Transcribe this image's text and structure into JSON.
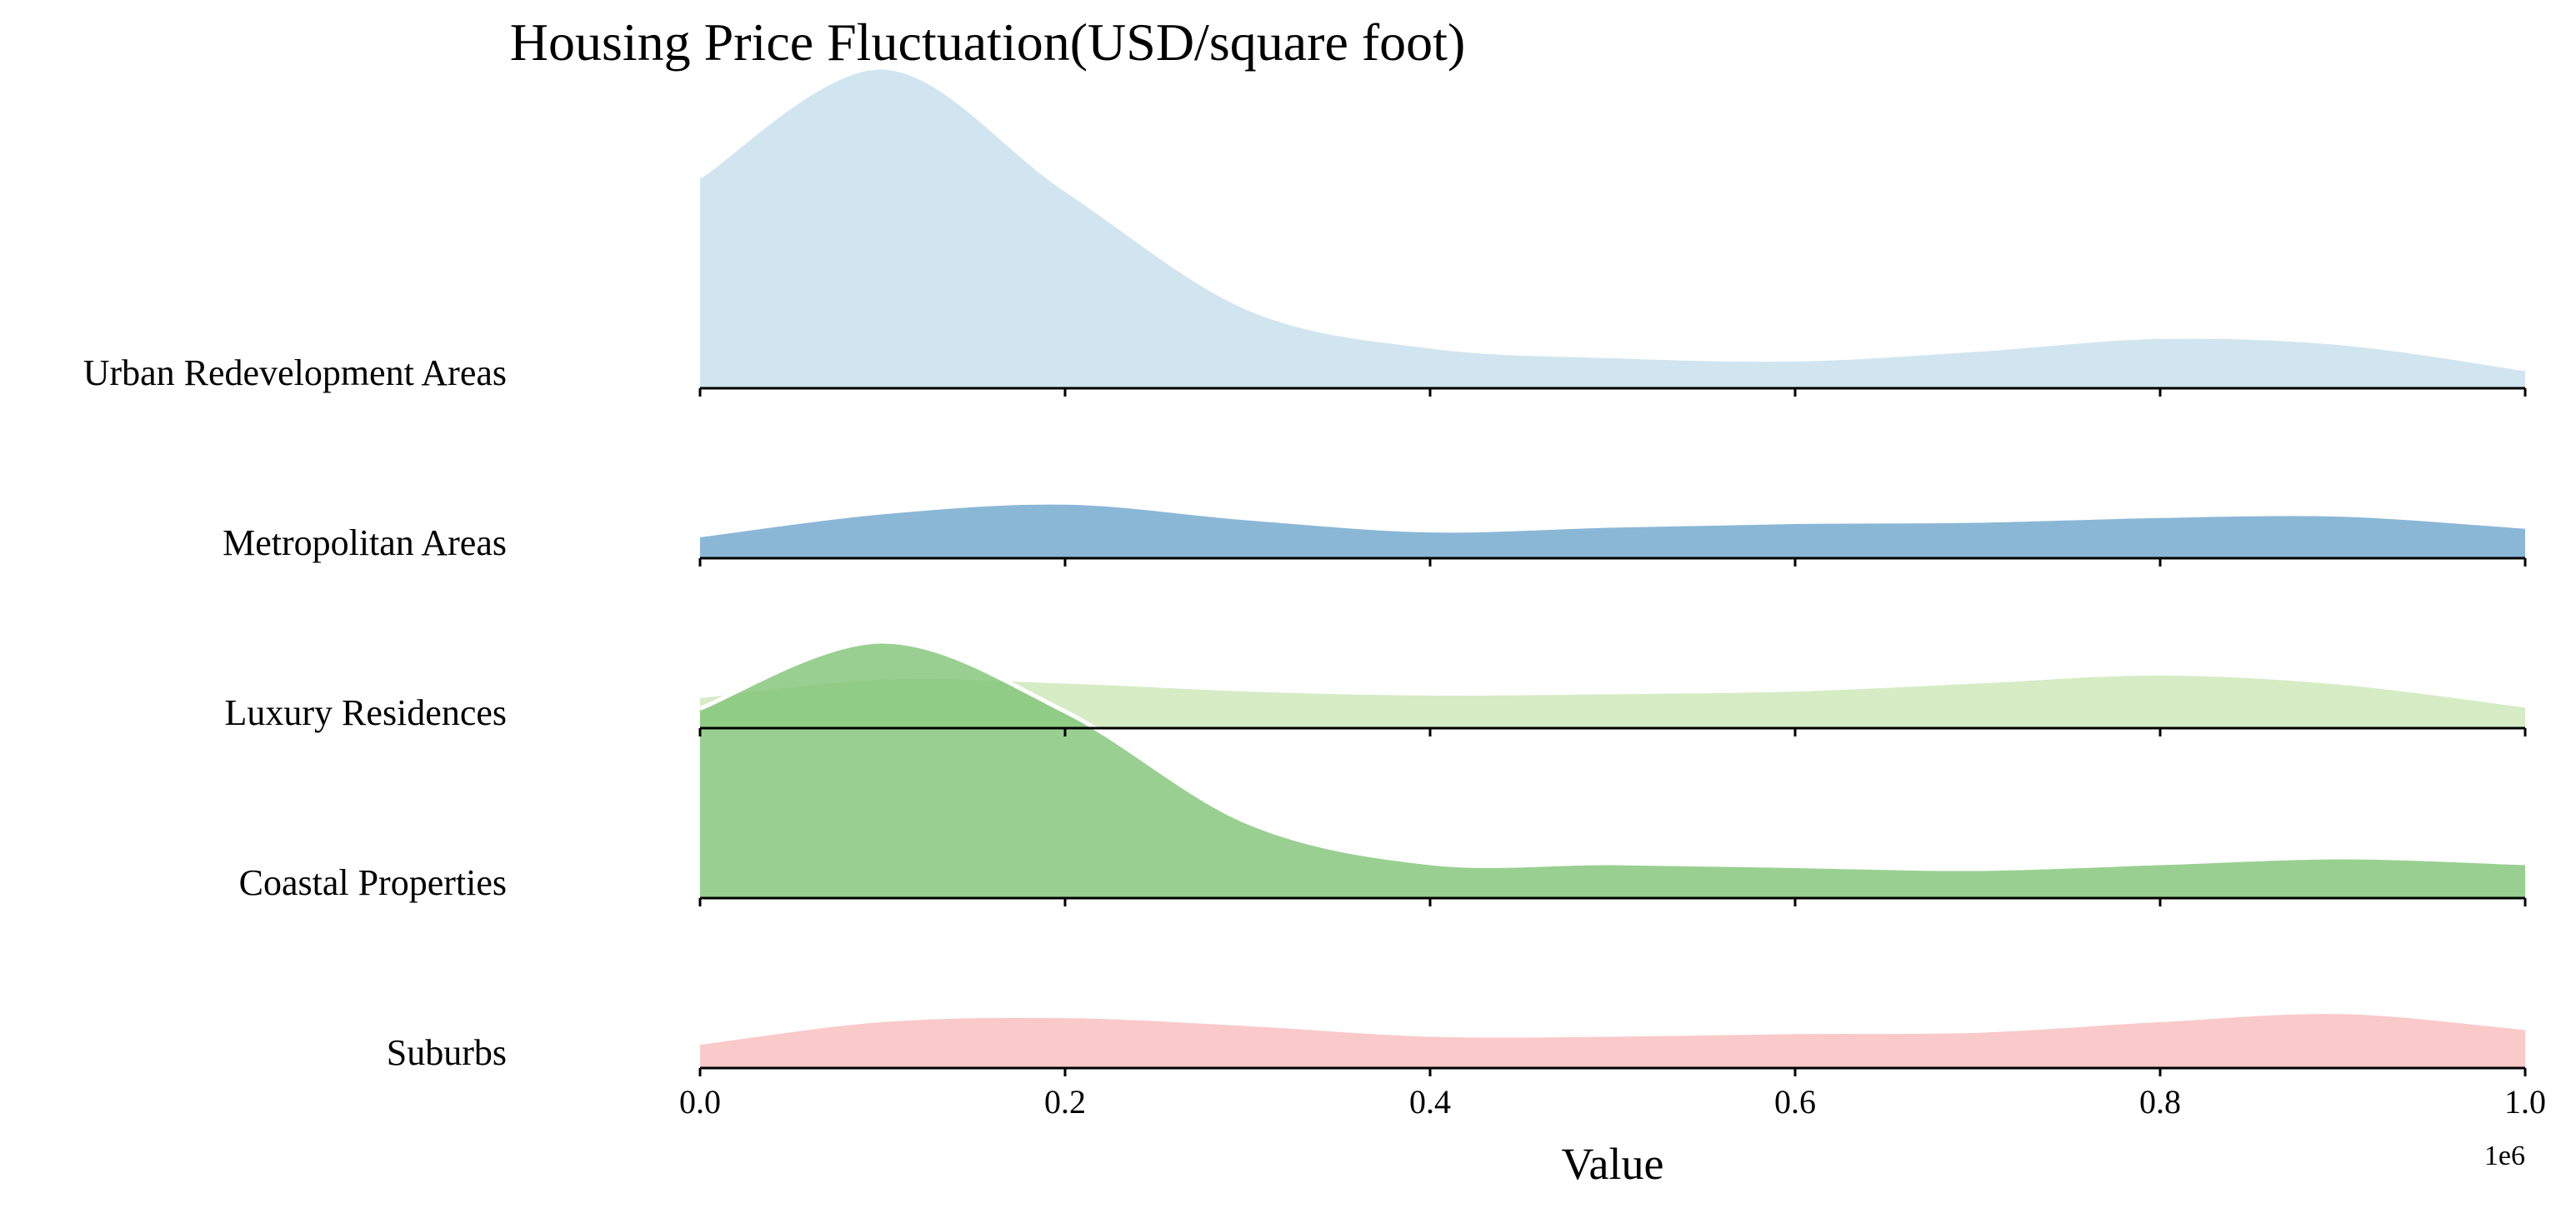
{
  "chart_data": {
    "type": "ridgeline",
    "title": "Housing Price Fluctuation(USD/square foot)",
    "xlabel": "Value",
    "x_offset_label": "1e6",
    "xlim": [
      0,
      1000000
    ],
    "x_ticks": [
      0,
      200000,
      400000,
      600000,
      800000,
      1000000
    ],
    "x_tick_labels": [
      "0.0",
      "0.2",
      "0.4",
      "0.6",
      "0.8",
      "1.0"
    ],
    "x": [
      0,
      100000,
      200000,
      300000,
      400000,
      500000,
      600000,
      700000,
      800000,
      900000,
      1000000
    ],
    "series": [
      {
        "name": "Urban Redevelopment Areas",
        "color": "#c6dfec",
        "opacity": 0.8,
        "values": [
          0.66,
          1.0,
          0.62,
          0.25,
          0.13,
          0.1,
          0.09,
          0.12,
          0.16,
          0.14,
          0.06
        ]
      },
      {
        "name": "Metropolitan Areas",
        "color": "#6ea5cd",
        "opacity": 0.8,
        "values": [
          0.19,
          0.38,
          0.46,
          0.33,
          0.23,
          0.27,
          0.3,
          0.31,
          0.35,
          0.36,
          0.26
        ]
      },
      {
        "name": "Luxury Residences",
        "color": "#cbe7b7",
        "opacity": 0.8,
        "values": [
          0.24,
          0.38,
          0.35,
          0.29,
          0.26,
          0.27,
          0.29,
          0.35,
          0.41,
          0.34,
          0.17
        ]
      },
      {
        "name": "Coastal Properties",
        "color": "#80c475",
        "opacity": 0.8,
        "values": [
          0.65,
          0.88,
          0.64,
          0.26,
          0.12,
          0.12,
          0.11,
          0.1,
          0.12,
          0.14,
          0.12
        ]
      },
      {
        "name": "Suburbs",
        "color": "#f9bcbb",
        "opacity": 0.8,
        "values": [
          0.19,
          0.36,
          0.39,
          0.33,
          0.25,
          0.25,
          0.27,
          0.28,
          0.36,
          0.42,
          0.3
        ]
      }
    ]
  }
}
